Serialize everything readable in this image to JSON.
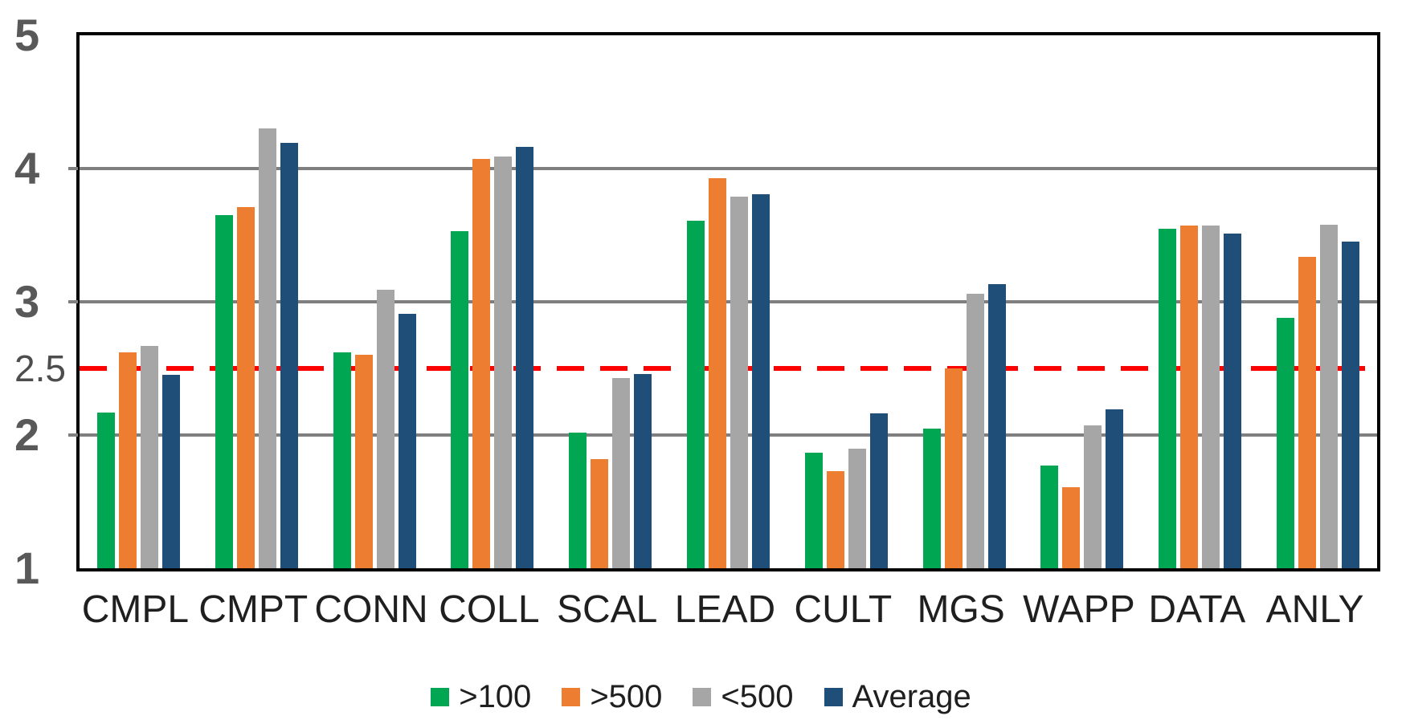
{
  "chart_data": {
    "type": "bar",
    "title": "",
    "xlabel": "",
    "ylabel": "",
    "categories": [
      "CMPL",
      "CMPT",
      "CONN",
      "COLL",
      "SCAL",
      "LEAD",
      "CULT",
      "MGS",
      "WAPP",
      "DATA",
      "ANLY"
    ],
    "series": [
      {
        "name": ">100",
        "color": "#00A651",
        "values": [
          2.17,
          3.65,
          2.62,
          3.53,
          2.02,
          3.61,
          1.87,
          2.05,
          1.77,
          3.55,
          2.88
        ]
      },
      {
        "name": ">500",
        "color": "#ED7D31",
        "values": [
          2.62,
          3.71,
          2.6,
          4.07,
          1.82,
          3.93,
          1.73,
          2.5,
          1.61,
          3.57,
          3.34
        ]
      },
      {
        "name": "<500",
        "color": "#A6A6A6",
        "values": [
          2.67,
          4.3,
          3.09,
          4.09,
          2.43,
          3.79,
          1.9,
          3.06,
          2.07,
          3.57,
          3.58
        ]
      },
      {
        "name": "Average",
        "color": "#1F4E79",
        "values": [
          2.45,
          4.19,
          2.91,
          4.16,
          2.46,
          3.81,
          2.16,
          3.13,
          2.19,
          3.51,
          3.45
        ]
      }
    ],
    "ylim": [
      1,
      5
    ],
    "yticks": [
      {
        "label": "5",
        "value": 5,
        "minor": false
      },
      {
        "label": "4",
        "value": 4,
        "minor": false
      },
      {
        "label": "3",
        "value": 3,
        "minor": false
      },
      {
        "label": "2.5",
        "value": 2.5,
        "minor": true
      },
      {
        "label": "2",
        "value": 2,
        "minor": false
      },
      {
        "label": "1",
        "value": 1,
        "minor": false
      }
    ],
    "gridlines": [
      2,
      3,
      4
    ],
    "reference_line": {
      "value": 2.5,
      "color": "#ff0000",
      "style": "dashed"
    },
    "grid_color": "#7f7f7f",
    "legend_position": "bottom",
    "legend": [
      ">100",
      ">500",
      "<500",
      "Average"
    ]
  }
}
